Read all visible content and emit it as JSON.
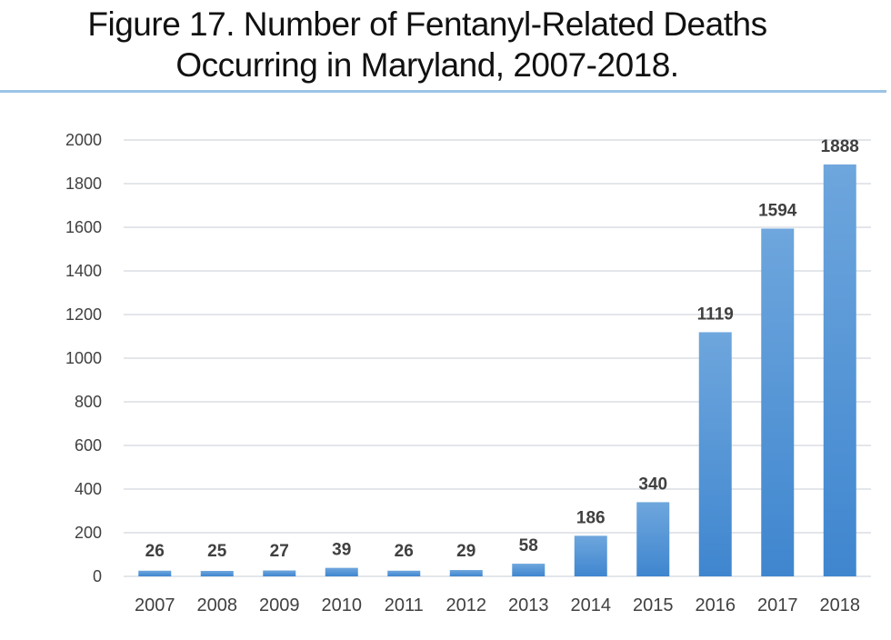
{
  "chart_data": {
    "type": "bar",
    "title": "Figure 17. Number of Fentanyl-Related Deaths Occurring in Maryland, 2007-2018.",
    "title_lines": [
      "Figure 17. Number of Fentanyl-Related Deaths",
      "Occurring in Maryland, 2007-2018."
    ],
    "xlabel": "",
    "ylabel": "",
    "categories": [
      "2007",
      "2008",
      "2009",
      "2010",
      "2011",
      "2012",
      "2013",
      "2014",
      "2015",
      "2016",
      "2017",
      "2018"
    ],
    "values": [
      26,
      25,
      27,
      39,
      26,
      29,
      58,
      186,
      340,
      1119,
      1594,
      1888
    ],
    "data_labels": [
      "26",
      "25",
      "27",
      "39",
      "26",
      "29",
      "58",
      "186",
      "340",
      "1119",
      "1594",
      "1888"
    ],
    "ylim": [
      0,
      2000
    ],
    "yticks": [
      0,
      200,
      400,
      600,
      800,
      1000,
      1200,
      1400,
      1600,
      1800,
      2000
    ],
    "grid": true,
    "legend": "none",
    "bar_color": "#4a8fd6",
    "bar_color_light": "#6ea6dd"
  }
}
